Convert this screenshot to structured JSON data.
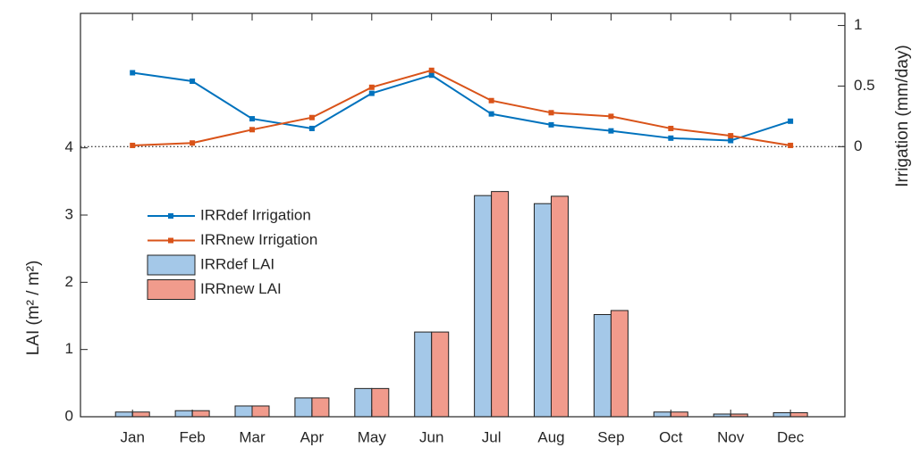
{
  "chart_data": {
    "type": "bar",
    "categories": [
      "Jan",
      "Feb",
      "Mar",
      "Apr",
      "May",
      "Jun",
      "Jul",
      "Aug",
      "Sep",
      "Oct",
      "Nov",
      "Dec"
    ],
    "series": [
      {
        "name": "IRRdef Irrigation",
        "type": "line",
        "axis": "y2",
        "color": "#0072bd",
        "values": [
          0.61,
          0.54,
          0.23,
          0.15,
          0.44,
          0.59,
          0.27,
          0.18,
          0.13,
          0.07,
          0.05,
          0.21
        ]
      },
      {
        "name": "IRRnew Irrigation",
        "type": "line",
        "axis": "y2",
        "color": "#d95319",
        "values": [
          0.01,
          0.03,
          0.14,
          0.24,
          0.49,
          0.63,
          0.38,
          0.28,
          0.25,
          0.15,
          0.09,
          0.01
        ]
      },
      {
        "name": "IRRdef LAI",
        "type": "bar",
        "color": "#a4c8e8",
        "values": [
          0.07,
          0.09,
          0.16,
          0.28,
          0.42,
          1.26,
          3.29,
          3.17,
          1.52,
          0.07,
          0.04,
          0.06
        ]
      },
      {
        "name": "IRRnew LAI",
        "type": "bar",
        "color": "#f19b8c",
        "values": [
          0.07,
          0.09,
          0.16,
          0.28,
          0.42,
          1.26,
          3.35,
          3.28,
          1.58,
          0.07,
          0.04,
          0.06
        ]
      }
    ],
    "y_label": "LAI (m² / m²)",
    "y2_label": "Irrigation (mm/day)",
    "ylim": [
      0,
      6
    ],
    "yticks": [
      0,
      1,
      2,
      3,
      4
    ],
    "y2lim": [
      -2.23,
      1.1
    ],
    "y2ticks": [
      0,
      0.5,
      1
    ],
    "grid": false
  }
}
